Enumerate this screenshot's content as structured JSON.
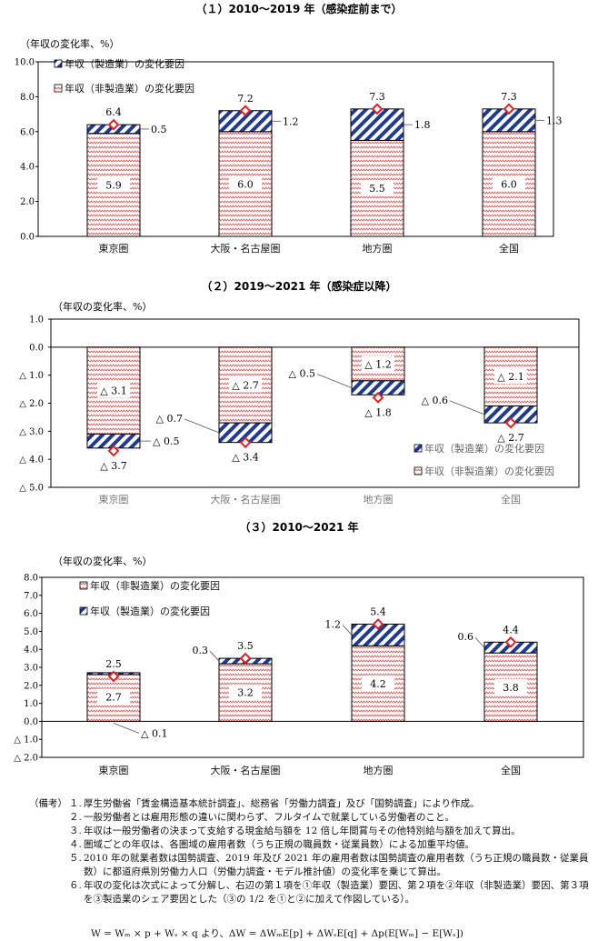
{
  "charts": [
    {
      "title": "（１）2010～2019 年（感染症前まで）",
      "ylabel": "（年収の変化率、%）",
      "ticks": [
        "10.0",
        "8.0",
        "6.0",
        "4.0",
        "2.0",
        "0.0"
      ],
      "legend": [
        "年収（製造業）の変化要因",
        "年収（非製造業）の変化要因"
      ]
    },
    {
      "title": "（２）2019～2021 年（感染症以降）",
      "ylabel": "（年収の変化率、%）",
      "ticks": [
        "1.0",
        "0.0",
        "△ 1.0",
        "△ 2.0",
        "△ 3.0",
        "△ 4.0",
        "△ 5.0"
      ],
      "legend": [
        "年収（製造業）の変化要因",
        "年収（非製造業）の変化要因"
      ]
    },
    {
      "title": "（３）2010～2021 年",
      "ylabel": "（年収の変化率、%）",
      "ticks": [
        "8.0",
        "7.0",
        "6.0",
        "5.0",
        "4.0",
        "3.0",
        "2.0",
        "1.0",
        "0.0",
        "△ 1.0",
        "△ 2.0"
      ],
      "legend": [
        "年収（非製造業）の変化要因",
        "年収（製造業）の変化要因"
      ]
    }
  ],
  "chart_data": [
    {
      "type": "bar",
      "title": "（１）2010～2019 年（感染症前まで）",
      "ylabel": "（年収の変化率、%）",
      "categories": [
        "東京圏",
        "大阪・名古屋圏",
        "地方圏",
        "全国"
      ],
      "series": [
        {
          "name": "年収（非製造業）の変化要因",
          "values": [
            5.9,
            6.0,
            5.5,
            6.0
          ],
          "labels": [
            "5.9",
            "6.0",
            "5.5",
            "6.0"
          ]
        },
        {
          "name": "年収（製造業）の変化要因",
          "values": [
            0.5,
            1.2,
            1.8,
            1.3
          ],
          "labels": [
            "0.5",
            "1.2",
            "1.8",
            "1.3"
          ]
        }
      ],
      "totals": [
        6.4,
        7.2,
        7.3,
        7.3
      ],
      "total_labels": [
        "6.4",
        "7.2",
        "7.3",
        "7.3"
      ],
      "ylim": [
        0,
        10
      ],
      "stack_order": [
        "nonmfg",
        "mfg"
      ]
    },
    {
      "type": "bar",
      "title": "（２）2019～2021 年（感染症以降）",
      "ylabel": "（年収の変化率、%）",
      "categories": [
        "東京圏",
        "大阪・名古屋圏",
        "地方圏",
        "全国"
      ],
      "series": [
        {
          "name": "年収（非製造業）の変化要因",
          "values": [
            -3.1,
            -2.7,
            -1.2,
            -2.1
          ],
          "labels": [
            "△ 3.1",
            "△ 2.7",
            "△ 1.2",
            "△ 2.1"
          ]
        },
        {
          "name": "年収（製造業）の変化要因",
          "values": [
            -0.5,
            -0.7,
            -0.5,
            -0.6
          ],
          "labels": [
            "△ 0.5",
            "△ 0.7",
            "△ 0.5",
            "△ 0.6"
          ]
        }
      ],
      "totals": [
        -3.7,
        -3.4,
        -1.8,
        -2.7
      ],
      "total_labels": [
        "△ 3.7",
        "△ 3.4",
        "△ 1.8",
        "△ 2.7"
      ],
      "ylim": [
        -5,
        1
      ]
    },
    {
      "type": "bar",
      "title": "（３）2010～2021 年",
      "ylabel": "（年収の変化率、%）",
      "categories": [
        "東京圏",
        "大阪・名古屋圏",
        "地方圏",
        "全国"
      ],
      "series": [
        {
          "name": "年収（非製造業）の変化要因",
          "values": [
            2.7,
            3.2,
            4.2,
            3.8
          ],
          "labels": [
            "2.7",
            "3.2",
            "4.2",
            "3.8"
          ]
        },
        {
          "name": "年収（製造業）の変化要因",
          "values": [
            -0.1,
            0.3,
            1.2,
            0.6
          ],
          "labels": [
            "△ 0.1",
            "0.3",
            "1.2",
            "0.6"
          ]
        }
      ],
      "totals": [
        2.5,
        3.5,
        5.4,
        4.4
      ],
      "total_labels": [
        "2.5",
        "3.5",
        "5.4",
        "4.4"
      ],
      "ylim": [
        -2,
        8
      ]
    }
  ],
  "notes": {
    "prefix": "（備考）",
    "items": [
      {
        "n": "１.",
        "t": "厚生労働省「賃金構造基本統計調査」、総務省「労働力調査」及び「国勢調査」により作成。"
      },
      {
        "n": "２.",
        "t": "一般労働者とは雇用形態の違いに関わらず、フルタイムで就業している労働者のこと。"
      },
      {
        "n": "３.",
        "t": "年収は一般労働者の決まって支給する現金給与額を 12 倍し年間賞与その他特別給与額を加えて算出。"
      },
      {
        "n": "４.",
        "t": "圏域ごとの年収は、各圏域の雇用者数（うち正規の職員数・従業員数）による加重平均値。"
      },
      {
        "n": "５.",
        "t": "2010 年の就業者数は国勢調査、2019 年及び 2021 年の雇用者数は国勢調査の雇用者数（うち正規の職員数・従業員数）に都道府県別労働力人口（労働力調査・モデル推計値）の変化率を乗じて算出。"
      },
      {
        "n": "６.",
        "t": "年収の変化は次式によって分解し、右辺の第１項を①年収（製造業）要因、第２項を②年収（非製造業）要因、第３項を③製造業のシェア要因とした（③の 1/2 を①と②に加えて作図している）。"
      }
    ],
    "formula": "W = Wₘ × p + Wₛ × q より、ΔW = ΔWₘE[p] + ΔWₛE[q] + Δp(E[Wₘ] − E[Wₛ])"
  },
  "colors": {
    "mfg_stripe": "#1f3a93",
    "nonmfg_zigzag": "#e05050",
    "marker": "#e02020",
    "axis": "#000"
  }
}
